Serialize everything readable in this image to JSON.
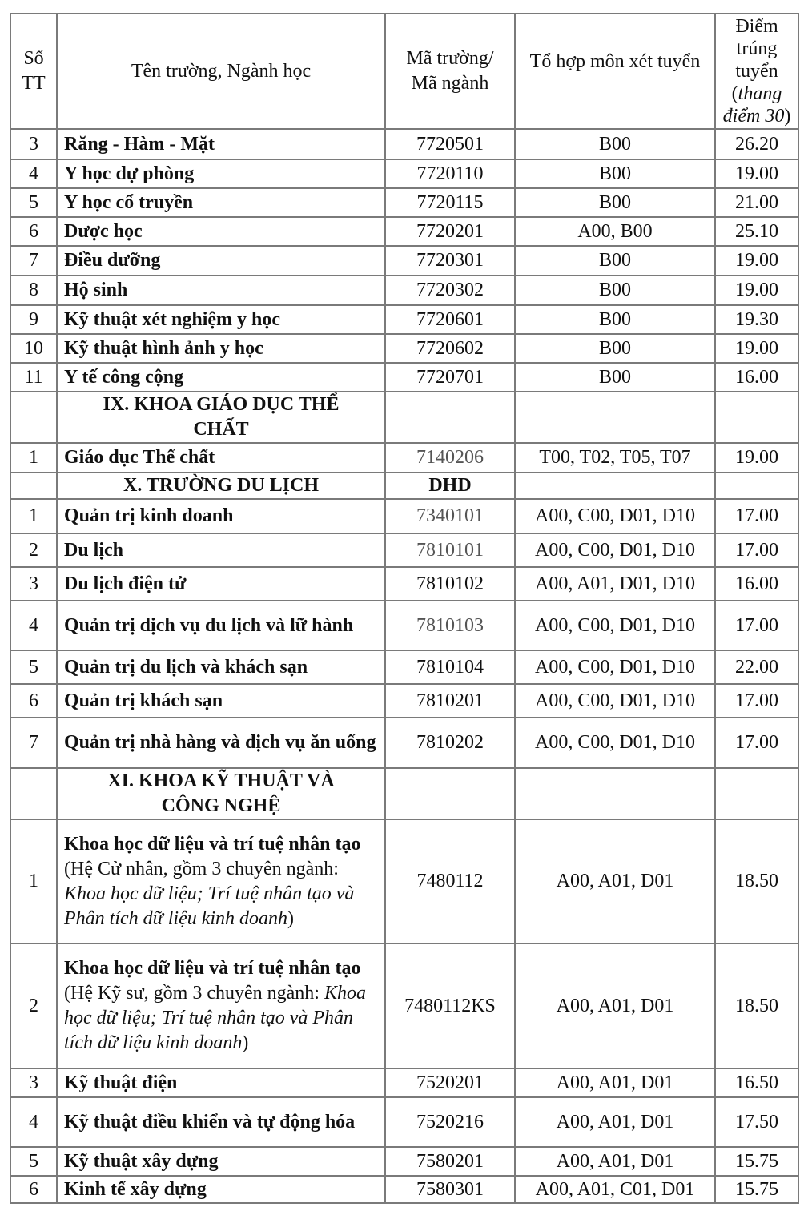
{
  "header": {
    "stt": "Số TT",
    "name": "Tên trường, Ngành học",
    "code": "Mã trường/ Mã ngành",
    "combo": "Tổ hợp môn xét tuyển",
    "score": "Điểm trúng tuyển",
    "score_note": "thang điểm 30"
  },
  "rows": [
    {
      "stt": "3",
      "name": [
        {
          "t": "Răng - Hàm - Mặt",
          "s": "b"
        }
      ],
      "code": "7720501",
      "combo": "B00",
      "score": "26.20"
    },
    {
      "stt": "4",
      "name": [
        {
          "t": "Y học dự phòng",
          "s": "b"
        }
      ],
      "code": "7720110",
      "combo": "B00",
      "score": "19.00"
    },
    {
      "stt": "5",
      "name": [
        {
          "t": "Y học cổ truyền",
          "s": "b"
        }
      ],
      "code": "7720115",
      "combo": "B00",
      "score": "21.00"
    },
    {
      "stt": "6",
      "name": [
        {
          "t": "Dược học",
          "s": "b"
        }
      ],
      "code": "7720201",
      "combo": "A00, B00",
      "score": "25.10"
    },
    {
      "stt": "7",
      "name": [
        {
          "t": "Điều dưỡng",
          "s": "b"
        }
      ],
      "code": "7720301",
      "combo": "B00",
      "score": "19.00"
    },
    {
      "stt": "8",
      "name": [
        {
          "t": "Hộ sinh",
          "s": "b"
        }
      ],
      "code": "7720302",
      "combo": "B00",
      "score": "19.00"
    },
    {
      "stt": "9",
      "name": [
        {
          "t": "Kỹ thuật xét nghiệm y học",
          "s": "b"
        }
      ],
      "code": "7720601",
      "combo": "B00",
      "score": "19.30"
    },
    {
      "stt": "10",
      "name": [
        {
          "t": "Kỹ thuật hình ảnh y học",
          "s": "b"
        }
      ],
      "code": "7720602",
      "combo": "B00",
      "score": "19.00"
    },
    {
      "stt": "11",
      "name": [
        {
          "t": "Y tế công cộng",
          "s": "b"
        }
      ],
      "code": "7720701",
      "combo": "B00",
      "score": "16.00"
    },
    {
      "section": "IX. KHOA GIÁO DỤC THỂ CHẤT",
      "code": ""
    },
    {
      "stt": "1",
      "name": [
        {
          "t": "Giáo dục Thể chất",
          "s": "b"
        }
      ],
      "code": "7140206",
      "code_muted": true,
      "combo": "T00, T02, T05, T07",
      "score": "19.00"
    },
    {
      "section": "X. TRƯỜNG DU LỊCH",
      "code": "DHD"
    },
    {
      "stt": "1",
      "name": [
        {
          "t": "Quản trị kinh doanh",
          "s": "b"
        }
      ],
      "code": "7340101",
      "code_muted": true,
      "combo": "A00, C00, D01, D10",
      "score": "17.00"
    },
    {
      "stt": "2",
      "name": [
        {
          "t": "Du lịch",
          "s": "b"
        }
      ],
      "code": "7810101",
      "code_muted": true,
      "combo": "A00, C00, D01, D10",
      "score": "17.00"
    },
    {
      "stt": "3",
      "name": [
        {
          "t": "Du lịch điện tử",
          "s": "b"
        }
      ],
      "code": "7810102",
      "combo": "A00, A01, D01, D10",
      "score": "16.00"
    },
    {
      "stt": "4",
      "name": [
        {
          "t": "Quản trị dịch vụ du lịch và lữ hành",
          "s": "b"
        }
      ],
      "code": "7810103",
      "code_muted": true,
      "combo": "A00, C00, D01, D10",
      "score": "17.00"
    },
    {
      "stt": "5",
      "name": [
        {
          "t": "Quản trị du lịch và khách sạn",
          "s": "b"
        }
      ],
      "code": "7810104",
      "combo": "A00, C00, D01, D10",
      "score": "22.00"
    },
    {
      "stt": "6",
      "name": [
        {
          "t": "Quản trị khách sạn",
          "s": "b"
        }
      ],
      "code": "7810201",
      "combo": "A00, C00, D01, D10",
      "score": "17.00"
    },
    {
      "stt": "7",
      "name": [
        {
          "t": "Quản trị nhà hàng và dịch vụ ăn uống",
          "s": "b"
        }
      ],
      "code": "7810202",
      "combo": "A00, C00, D01, D10",
      "score": "17.00"
    },
    {
      "section": "XI. KHOA KỸ THUẬT VÀ CÔNG NGHỆ",
      "code": ""
    },
    {
      "stt": "1",
      "name": [
        {
          "t": "Khoa học dữ liệu và trí tuệ nhân tạo",
          "s": "b"
        },
        {
          "t": " (Hệ Cử nhân, gồm 3 chuyên ngành: ",
          "s": "n"
        },
        {
          "t": "Khoa học dữ liệu; Trí tuệ nhân tạo và Phân tích dữ liệu kinh doanh",
          "s": "i"
        },
        {
          "t": ")",
          "s": "n"
        }
      ],
      "code": "7480112",
      "combo": "A00, A01, D01",
      "score": "18.50"
    },
    {
      "stt": "2",
      "name": [
        {
          "t": "Khoa học dữ liệu và trí tuệ nhân tạo",
          "s": "b"
        },
        {
          "t": " (Hệ Kỹ sư, gồm 3 chuyên ngành: ",
          "s": "n"
        },
        {
          "t": "Khoa học dữ liệu; Trí tuệ nhân tạo và Phân tích dữ liệu kinh doanh",
          "s": "i"
        },
        {
          "t": ")",
          "s": "n"
        }
      ],
      "code": "7480112KS",
      "combo": "A00, A01, D01",
      "score": "18.50"
    },
    {
      "stt": "3",
      "name": [
        {
          "t": "Kỹ thuật điện",
          "s": "b"
        }
      ],
      "code": "7520201",
      "combo": "A00, A01, D01",
      "score": "16.50"
    },
    {
      "stt": "4",
      "name": [
        {
          "t": "Kỹ thuật điều khiển và tự động hóa",
          "s": "b"
        }
      ],
      "code": "7520216",
      "combo": "A00, A01, D01",
      "score": "17.50"
    },
    {
      "stt": "5",
      "name": [
        {
          "t": "Kỹ thuật xây dựng",
          "s": "b"
        }
      ],
      "code": "7580201",
      "combo": "A00, A01, D01",
      "score": "15.75"
    },
    {
      "stt": "6",
      "name": [
        {
          "t": "Kinh tế xây dựng",
          "s": "b"
        }
      ],
      "code": "7580301",
      "combo": "A00, A01, C01, D01",
      "score": "15.75"
    }
  ]
}
